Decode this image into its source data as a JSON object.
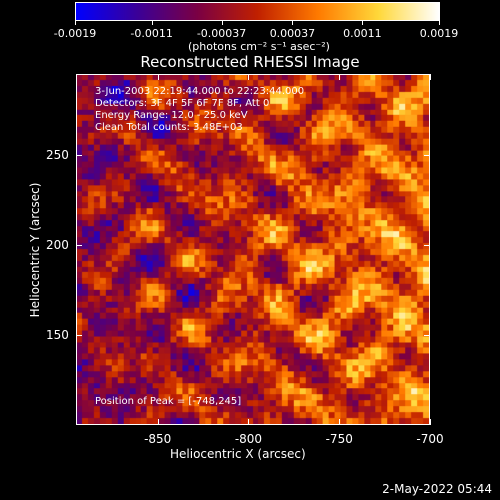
{
  "chart_data": {
    "type": "heatmap",
    "title": "Reconstructed RHESSI Image",
    "xlabel": "Heliocentric X (arcsec)",
    "ylabel": "Heliocentric Y (arcsec)",
    "xlim": [
      -895,
      -700
    ],
    "ylim": [
      100,
      295
    ],
    "xticks": [
      -850,
      -800,
      -750,
      -700
    ],
    "yticks": [
      150,
      200,
      250
    ],
    "xtick_labels": [
      "-850",
      "-800",
      "-750",
      "-700"
    ],
    "ytick_labels": [
      "150",
      "200",
      "250"
    ],
    "colorbar": {
      "ticks": [
        -0.0019,
        -0.0011,
        -0.00037,
        0.00037,
        0.0011,
        0.0019
      ],
      "tick_labels": [
        "-0.0019",
        "-0.0011",
        "-0.00037",
        "0.00037",
        "0.0011",
        "0.0019"
      ],
      "units": "(photons cm⁻² s⁻¹ asec⁻²)",
      "colors": [
        "#0000ff",
        "#3a0099",
        "#7a0044",
        "#c02000",
        "#ff7a00",
        "#ffd83a",
        "#ffffff"
      ]
    },
    "annotations": {
      "time_range": "3-Jun-2003 22:19:44.000 to 22:23:44.000",
      "detectors": "Detectors: 3F 4F 5F 6F 7F 8F, Att 0",
      "energy": "Energy Range: 12.0 - 25.0 keV",
      "clean": "Clean     Total counts: 3.48E+03",
      "peak": "Position of Peak = [-748,245]"
    }
  },
  "datestamp": "2-May-2022 05:44"
}
